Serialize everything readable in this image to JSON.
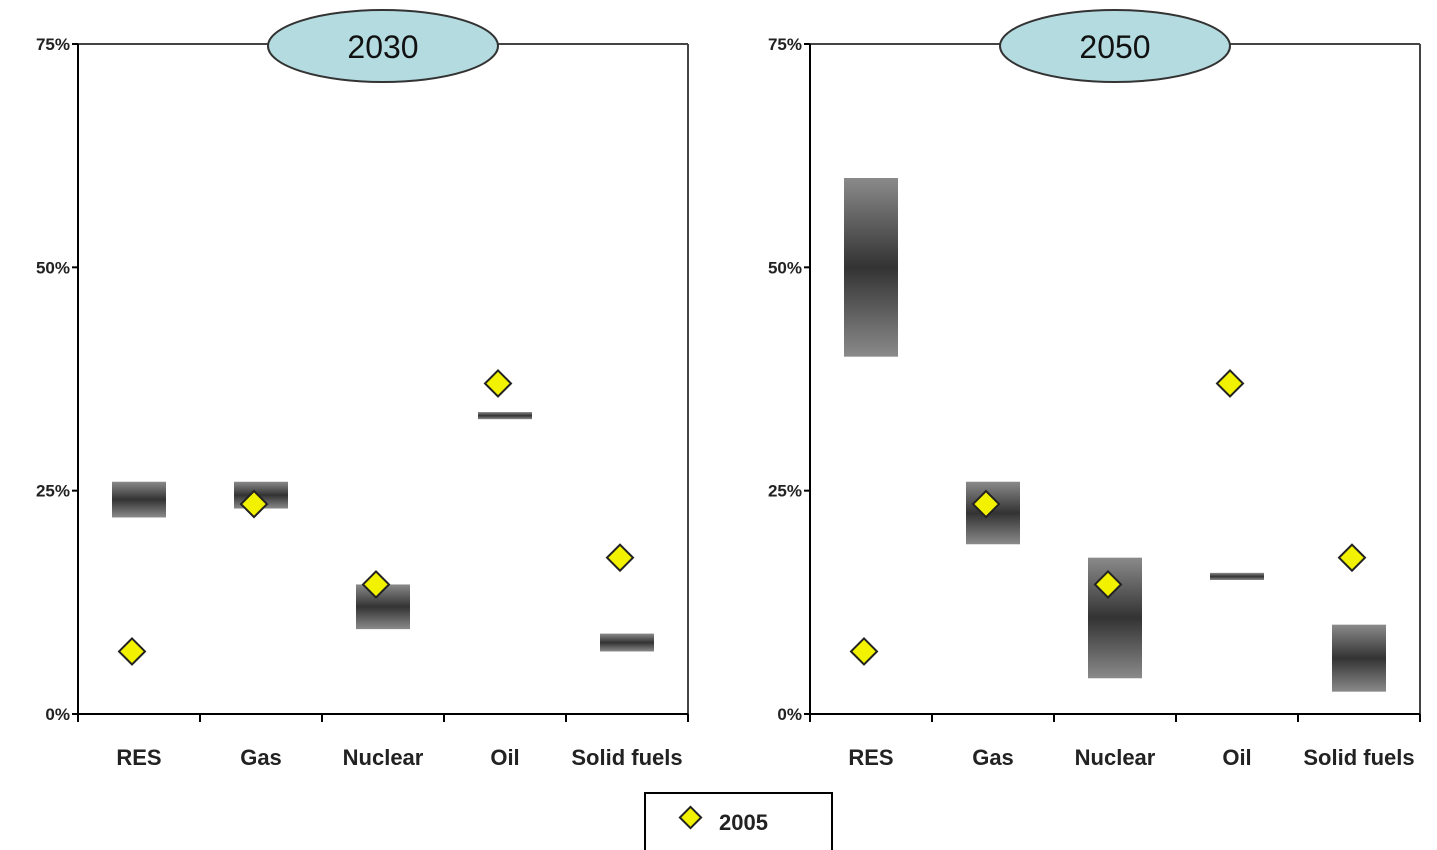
{
  "chart_data": [
    {
      "type": "range-bar",
      "title": "2030",
      "categories": [
        "RES",
        "Gas",
        "Nuclear",
        "Oil",
        "Solid fuels"
      ],
      "y_ticks": [
        "0%",
        "25%",
        "50%",
        "75%"
      ],
      "ylim": [
        0,
        75
      ],
      "ranges": [
        {
          "category": "RES",
          "low": 22,
          "high": 26
        },
        {
          "category": "Gas",
          "low": 23,
          "high": 26
        },
        {
          "category": "Nuclear",
          "low": 9.5,
          "high": 14.5
        },
        {
          "category": "Oil",
          "low": 33,
          "high": 33.8
        },
        {
          "category": "Solid fuels",
          "low": 7,
          "high": 9
        }
      ],
      "series": [
        {
          "name": "2005",
          "values": [
            7,
            23.5,
            14.5,
            37,
            17.5
          ]
        }
      ]
    },
    {
      "type": "range-bar",
      "title": "2050",
      "categories": [
        "RES",
        "Gas",
        "Nuclear",
        "Oil",
        "Solid fuels"
      ],
      "y_ticks": [
        "0%",
        "25%",
        "50%",
        "75%"
      ],
      "ylim": [
        0,
        75
      ],
      "ranges": [
        {
          "category": "RES",
          "low": 40,
          "high": 60
        },
        {
          "category": "Gas",
          "low": 19,
          "high": 26
        },
        {
          "category": "Nuclear",
          "low": 4,
          "high": 17.5
        },
        {
          "category": "Oil",
          "low": 15,
          "high": 15.8
        },
        {
          "category": "Solid fuels",
          "low": 2.5,
          "high": 10
        }
      ],
      "series": [
        {
          "name": "2005",
          "values": [
            7,
            23.5,
            14.5,
            37,
            17.5
          ]
        }
      ]
    }
  ],
  "legend": {
    "label": "2005",
    "marker_color": "#f2f200"
  }
}
